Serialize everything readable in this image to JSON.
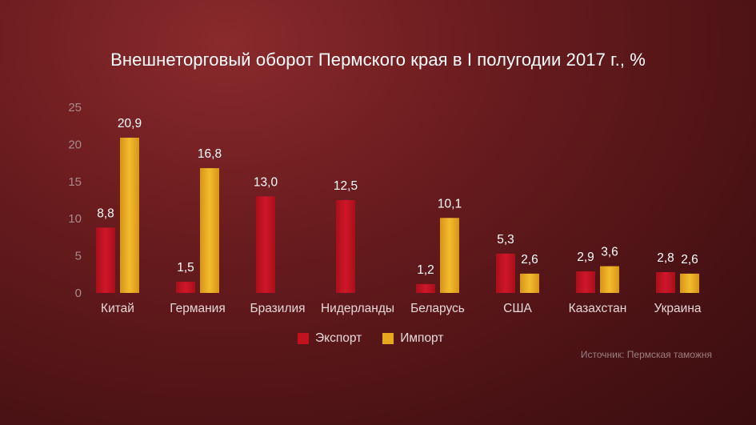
{
  "title": "Внешнеторговый оборот Пермского края в I полугодии 2017 г., %",
  "source": "Источник: Пермская таможня",
  "colors": {
    "export": "#c0121f",
    "import": "#e6a81e"
  },
  "chart_data": {
    "type": "bar",
    "title": "Внешнеторговый оборот Пермского края в I полугодии 2017 г., %",
    "categories": [
      "Китай",
      "Германия",
      "Бразилия",
      "Нидерланды",
      "Беларусь",
      "США",
      "Казахстан",
      "Украина"
    ],
    "series": [
      {
        "name": "Экспорт",
        "values": [
          8.8,
          1.5,
          13.0,
          12.5,
          1.2,
          5.3,
          2.9,
          2.8
        ],
        "labels": [
          "8,8",
          "1,5",
          "13,0",
          "12,5",
          "1,2",
          "5,3",
          "2,9",
          "2,8"
        ]
      },
      {
        "name": "Импорт",
        "values": [
          20.9,
          16.8,
          null,
          null,
          10.1,
          2.6,
          3.6,
          2.6
        ],
        "labels": [
          "20,9",
          "16,8",
          null,
          null,
          "10,1",
          "2,6",
          "3,6",
          "2,6"
        ]
      }
    ],
    "yticks": [
      "0",
      "5",
      "10",
      "15",
      "20",
      "25"
    ],
    "ylim": [
      0,
      25
    ],
    "grid": false,
    "legend": "bottom-center"
  }
}
